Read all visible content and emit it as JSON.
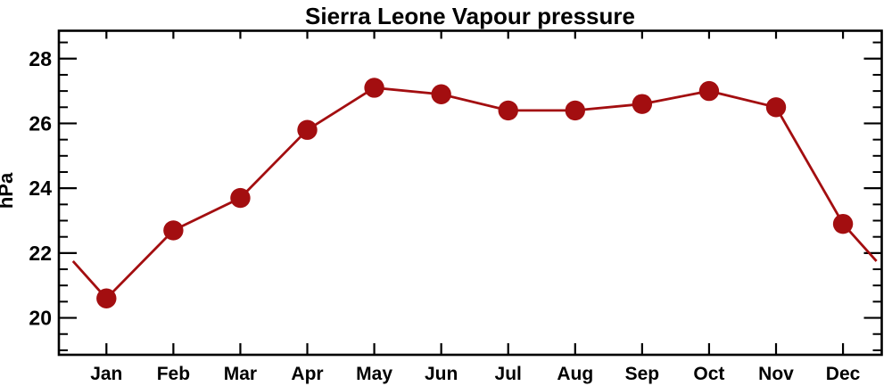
{
  "page": {
    "title": "Sierra Leone Vapour pressure"
  },
  "chart_data": {
    "type": "line",
    "title": "Sierra Leone Vapour pressure",
    "xlabel": "",
    "ylabel": "hPa",
    "categories": [
      "Jan",
      "Feb",
      "Mar",
      "Apr",
      "May",
      "Jun",
      "Jul",
      "Aug",
      "Sep",
      "Oct",
      "Nov",
      "Dec"
    ],
    "values": [
      20.6,
      22.7,
      23.7,
      25.8,
      27.1,
      26.9,
      26.4,
      26.4,
      26.6,
      27.0,
      26.5,
      22.9
    ],
    "edge_values": {
      "left": 21.75,
      "right": 21.75
    },
    "series_name": "Vapour pressure",
    "units": "hPa",
    "ylim": [
      18.86,
      28.86
    ],
    "y_major_ticks": [
      28,
      26,
      24,
      22,
      20
    ],
    "y_tick_labels": [
      "28",
      "26",
      "24",
      "22",
      "20"
    ],
    "y_minor_step": 0.5,
    "grid": false,
    "legend_position": "none",
    "marker": "circle",
    "colors": {
      "line": "#a30e10",
      "marker": "#a30e10",
      "axis": "#000000",
      "text": "#000000",
      "background": "#ffffff"
    }
  }
}
